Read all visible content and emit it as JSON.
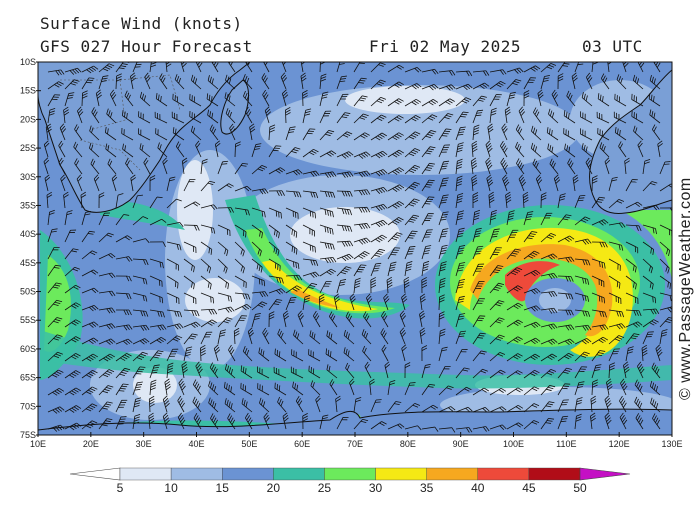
{
  "header": {
    "title": "Surface Wind (knots)",
    "forecast": "GFS 027 Hour Forecast",
    "date": "Fri 02 May 2025",
    "time": "03 UTC"
  },
  "map": {
    "lat_labels": [
      "10S",
      "15S",
      "20S",
      "25S",
      "30S",
      "35S",
      "40S",
      "45S",
      "50S",
      "55S",
      "60S",
      "65S",
      "70S",
      "75S"
    ],
    "lon_labels": [
      "10E",
      "20E",
      "30E",
      "40E",
      "50E",
      "60E",
      "70E",
      "80E",
      "90E",
      "100E",
      "110E",
      "120E",
      "130E"
    ],
    "extent": {
      "lon_min": 10,
      "lon_max": 130,
      "lat_min": -75,
      "lat_max": -10
    }
  },
  "legend": {
    "values": [
      "5",
      "10",
      "15",
      "20",
      "25",
      "30",
      "35",
      "40",
      "45",
      "50"
    ],
    "colors": [
      "#ffffff",
      "#dfe8f5",
      "#9fbce4",
      "#6b93d3",
      "#3bbfa5",
      "#6cea5c",
      "#f5e914",
      "#f6a81f",
      "#ee4a3a",
      "#b10d18",
      "#c410c4"
    ]
  },
  "credit": "© www.PassageWeather.com"
}
